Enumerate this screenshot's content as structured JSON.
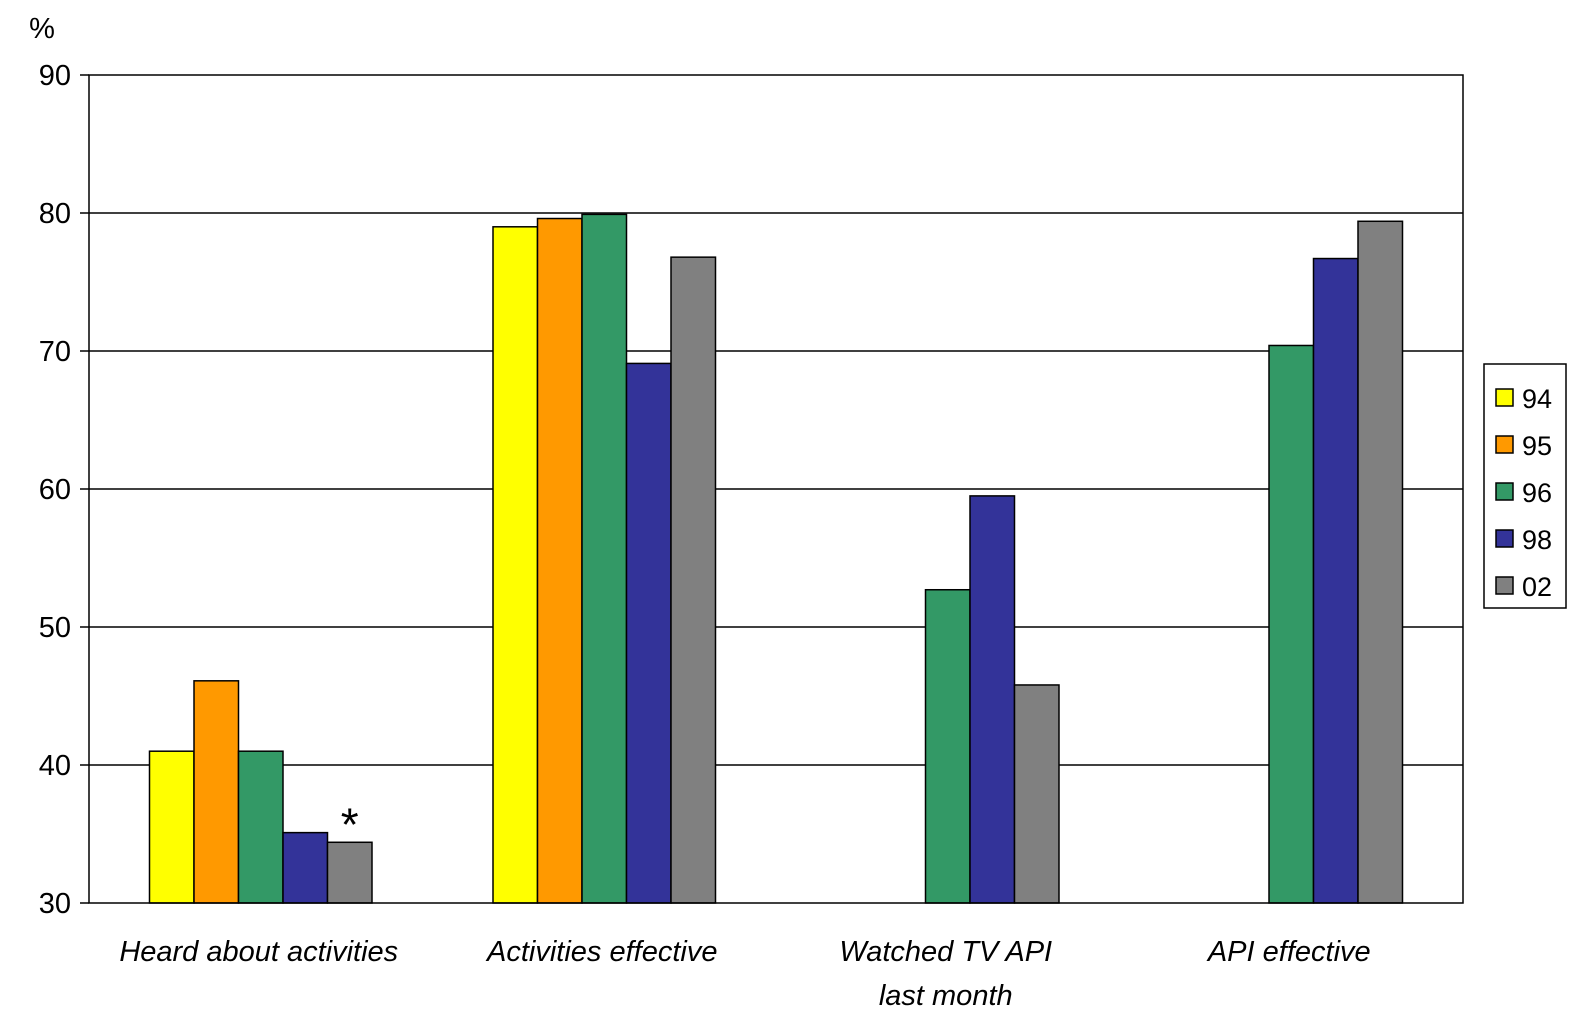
{
  "chart_data": {
    "type": "bar",
    "ylabel": "%",
    "ylim": [
      30,
      90
    ],
    "yticks": [
      30,
      40,
      50,
      60,
      70,
      80,
      90
    ],
    "grid": true,
    "legend_position": "right",
    "categories": [
      [
        "Heard about activities"
      ],
      [
        "Activities effective"
      ],
      [
        "Watched TV API",
        "last month"
      ],
      [
        "API effective"
      ]
    ],
    "series": [
      {
        "name": "94",
        "color": "#FFFF00",
        "values": [
          41.0,
          79.0,
          null,
          null
        ]
      },
      {
        "name": "95",
        "color": "#FF9900",
        "values": [
          46.1,
          79.6,
          null,
          null
        ]
      },
      {
        "name": "96",
        "color": "#339966",
        "values": [
          41.0,
          79.9,
          52.7,
          70.4
        ]
      },
      {
        "name": "98",
        "color": "#333399",
        "values": [
          35.1,
          69.1,
          59.5,
          76.7
        ]
      },
      {
        "name": "02",
        "color": "#808080",
        "values": [
          34.4,
          76.8,
          45.8,
          79.4
        ]
      }
    ],
    "annotations": [
      {
        "text": "*",
        "category_index": 0,
        "series_index": 4
      }
    ]
  }
}
